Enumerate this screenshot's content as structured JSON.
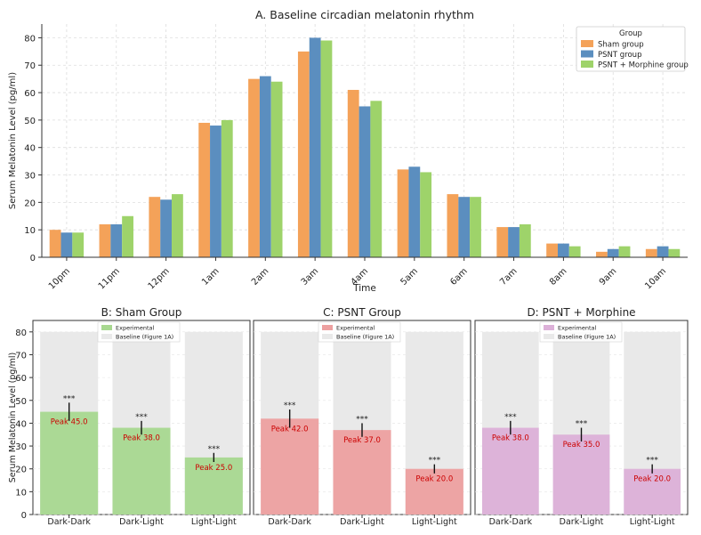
{
  "chart_data": [
    {
      "type": "bar",
      "title": "A. Baseline circadian melatonin rhythm",
      "xlabel": "Time",
      "ylabel": "Serum Melatonin Level (pg/ml)",
      "ylim": [
        0,
        85
      ],
      "yticks": [
        0,
        10,
        20,
        30,
        40,
        50,
        60,
        70,
        80
      ],
      "grid": true,
      "legend_title": "Group",
      "legend_position": "top-right",
      "categories": [
        "10pm",
        "11pm",
        "12pm",
        "1am",
        "2am",
        "3am",
        "4am",
        "5am",
        "6am",
        "7am",
        "8am",
        "9am",
        "10am"
      ],
      "series": [
        {
          "name": "Sham group",
          "color": "#f4a259",
          "values": [
            10,
            12,
            22,
            49,
            65,
            75,
            61,
            32,
            23,
            11,
            5,
            2,
            3
          ]
        },
        {
          "name": "PSNT group",
          "color": "#5b8ebf",
          "values": [
            9,
            12,
            21,
            48,
            66,
            80,
            55,
            33,
            22,
            11,
            5,
            3,
            4
          ]
        },
        {
          "name": "PSNT + Morphine group",
          "color": "#9ed36a",
          "values": [
            9,
            15,
            23,
            50,
            64,
            79,
            57,
            31,
            22,
            12,
            4,
            4,
            3
          ]
        }
      ]
    },
    {
      "type": "bar",
      "title": "B: Sham Group",
      "ylabel": "Serum Melatonin Level (pg/ml)",
      "ylim": [
        0,
        85
      ],
      "yticks": [
        0,
        10,
        20,
        30,
        40,
        50,
        60,
        70,
        80
      ],
      "categories": [
        "Dark-Dark",
        "Dark-Light",
        "Light-Light"
      ],
      "legend_position": "top-left",
      "experimental": {
        "name": "Experimental",
        "color": "#a8d890",
        "values": [
          45,
          38,
          25
        ],
        "errors": [
          4,
          3,
          2
        ]
      },
      "baseline": {
        "name": "Baseline (Figure 1A)",
        "color": "#e9e9e9",
        "values": [
          80,
          80,
          80
        ]
      },
      "annotations": [
        "***",
        "***",
        "***"
      ],
      "peak_labels": [
        "Peak 45.0",
        "Peak 38.0",
        "Peak 25.0"
      ]
    },
    {
      "type": "bar",
      "title": "C: PSNT Group",
      "ylim": [
        0,
        85
      ],
      "categories": [
        "Dark-Dark",
        "Dark-Light",
        "Light-Light"
      ],
      "legend_position": "top-left",
      "experimental": {
        "name": "Experimental",
        "color": "#eda0a0",
        "values": [
          42,
          37,
          20
        ],
        "errors": [
          4,
          3,
          2
        ]
      },
      "baseline": {
        "name": "Baseline (Figure 1A)",
        "color": "#e9e9e9",
        "values": [
          80,
          80,
          80
        ]
      },
      "annotations": [
        "***",
        "***",
        "***"
      ],
      "peak_labels": [
        "Peak 42.0",
        "Peak 37.0",
        "Peak 20.0"
      ]
    },
    {
      "type": "bar",
      "title": "D: PSNT + Morphine",
      "ylim": [
        0,
        85
      ],
      "categories": [
        "Dark-Dark",
        "Dark-Light",
        "Light-Light"
      ],
      "legend_position": "top-left",
      "experimental": {
        "name": "Experimental",
        "color": "#dcb0d8",
        "values": [
          38,
          35,
          20
        ],
        "errors": [
          3,
          3,
          2
        ]
      },
      "baseline": {
        "name": "Baseline (Figure 1A)",
        "color": "#e9e9e9",
        "values": [
          80,
          80,
          80
        ]
      },
      "annotations": [
        "***",
        "***",
        "***"
      ],
      "peak_labels": [
        "Peak 38.0",
        "Peak 35.0",
        "Peak 20.0"
      ]
    }
  ]
}
